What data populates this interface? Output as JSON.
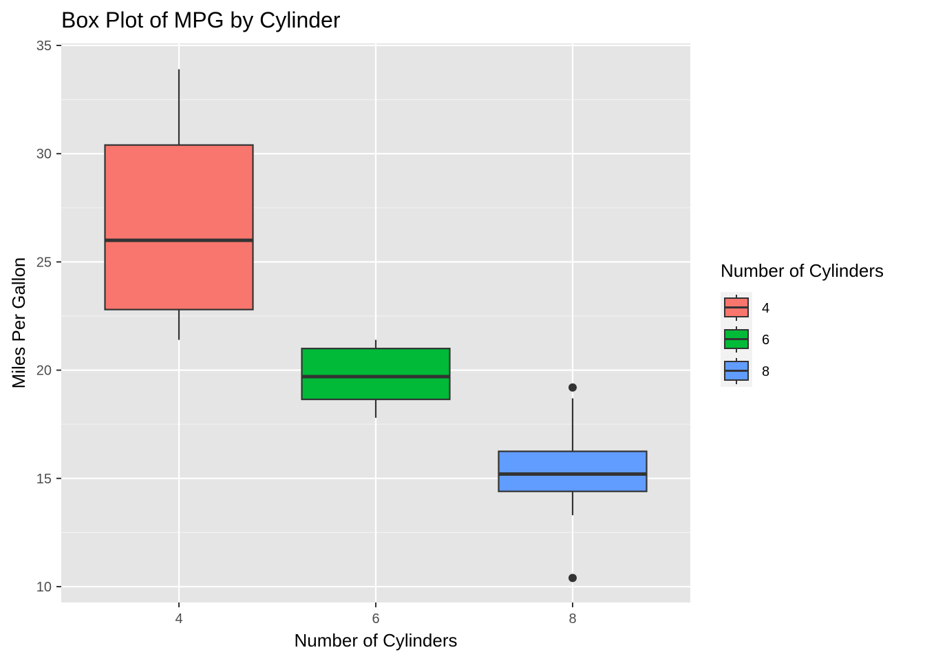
{
  "chart_data": {
    "type": "box",
    "title": "Box Plot of MPG by Cylinder",
    "xlabel": "Number of Cylinders",
    "ylabel": "Miles Per Gallon",
    "ylim": [
      9.25,
      35.0
    ],
    "y_ticks": [
      10,
      15,
      20,
      25,
      30,
      35
    ],
    "categories": [
      "4",
      "6",
      "8"
    ],
    "series": [
      {
        "category": "4",
        "whisker_low": 21.4,
        "q1": 22.8,
        "median": 26.0,
        "q3": 30.4,
        "whisker_high": 33.9,
        "outliers": [],
        "color": "#F8766D"
      },
      {
        "category": "6",
        "whisker_low": 17.8,
        "q1": 18.65,
        "median": 19.7,
        "q3": 21.0,
        "whisker_high": 21.4,
        "outliers": [],
        "color": "#00BA38"
      },
      {
        "category": "8",
        "whisker_low": 13.3,
        "q1": 14.4,
        "median": 15.2,
        "q3": 16.25,
        "whisker_high": 18.7,
        "outliers": [
          10.4,
          19.2
        ],
        "color": "#619CFF"
      }
    ],
    "legend": {
      "title": "Number of Cylinders",
      "position": "right",
      "items": [
        "4",
        "6",
        "8"
      ]
    },
    "grid": true,
    "panel_color": "#E5E5E5"
  }
}
